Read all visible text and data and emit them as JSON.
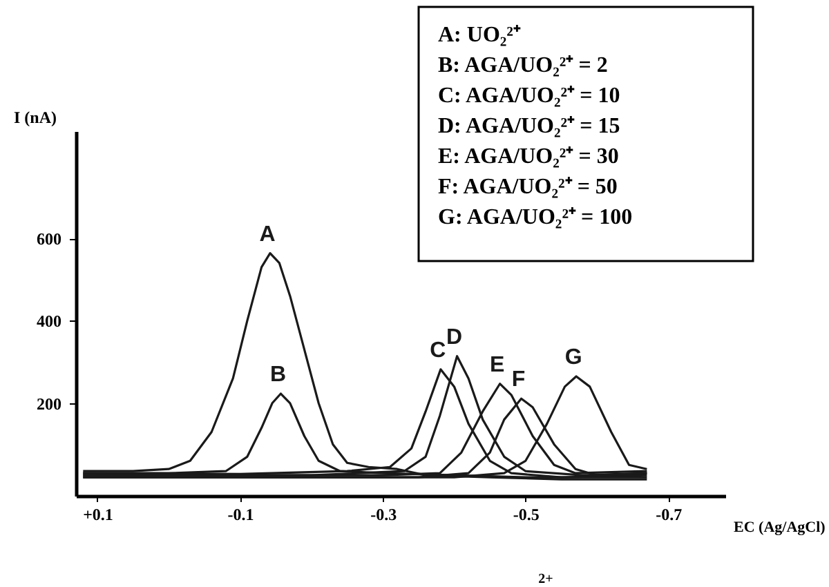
{
  "chart_data": {
    "type": "line",
    "xlabel": "EC (Ag/AgCl)",
    "ylabel": "I (nA)",
    "xlim": [
      0.13,
      -0.78
    ],
    "ylim": [
      -25,
      860
    ],
    "xticks": [
      {
        "value": 0.1,
        "label": "+0.1"
      },
      -0.1,
      -0.3,
      -0.5,
      -0.7
    ],
    "yticks": [
      200,
      400,
      600
    ],
    "grid": false,
    "legend": false,
    "marker": "none",
    "line_style": "solid",
    "series": [
      {
        "name": "A",
        "color": "#1a1a1a",
        "x": [
          0.12,
          0.05,
          0.0,
          -0.03,
          -0.06,
          -0.09,
          -0.11,
          -0.13,
          -0.142,
          -0.155,
          -0.17,
          -0.19,
          -0.21,
          -0.23,
          -0.25,
          -0.28,
          -0.32,
          -0.36,
          -0.45,
          -0.55,
          -0.67
        ],
        "values": [
          35,
          35,
          40,
          60,
          130,
          260,
          400,
          530,
          564,
          540,
          460,
          330,
          200,
          100,
          55,
          45,
          40,
          25,
          20,
          15,
          15
        ]
      },
      {
        "name": "B",
        "color": "#1a1a1a",
        "x": [
          0.12,
          0.0,
          -0.08,
          -0.11,
          -0.13,
          -0.145,
          -0.157,
          -0.17,
          -0.19,
          -0.21,
          -0.24,
          -0.3,
          -0.4,
          -0.5,
          -0.67
        ],
        "values": [
          30,
          30,
          35,
          70,
          140,
          200,
          223,
          200,
          120,
          60,
          35,
          30,
          25,
          20,
          20
        ]
      },
      {
        "name": "C",
        "color": "#1a1a1a",
        "x": [
          0.12,
          -0.1,
          -0.25,
          -0.31,
          -0.34,
          -0.36,
          -0.381,
          -0.4,
          -0.42,
          -0.45,
          -0.48,
          -0.55,
          -0.67
        ],
        "values": [
          30,
          28,
          35,
          45,
          90,
          180,
          282,
          240,
          150,
          60,
          30,
          20,
          25
        ]
      },
      {
        "name": "D",
        "color": "#1a1a1a",
        "x": [
          0.12,
          -0.2,
          -0.33,
          -0.36,
          -0.38,
          -0.404,
          -0.42,
          -0.44,
          -0.47,
          -0.5,
          -0.58,
          -0.67
        ],
        "values": [
          25,
          25,
          35,
          70,
          170,
          314,
          260,
          160,
          70,
          35,
          25,
          30
        ]
      },
      {
        "name": "E",
        "color": "#1a1a1a",
        "x": [
          0.12,
          -0.3,
          -0.38,
          -0.41,
          -0.44,
          -0.464,
          -0.48,
          -0.51,
          -0.54,
          -0.57,
          -0.67
        ],
        "values": [
          25,
          25,
          30,
          80,
          180,
          247,
          220,
          120,
          50,
          30,
          35
        ]
      },
      {
        "name": "F",
        "color": "#1a1a1a",
        "x": [
          0.12,
          -0.35,
          -0.42,
          -0.45,
          -0.47,
          -0.494,
          -0.51,
          -0.54,
          -0.57,
          -0.6,
          -0.67
        ],
        "values": [
          20,
          20,
          30,
          80,
          160,
          211,
          190,
          100,
          40,
          25,
          30
        ]
      },
      {
        "name": "G",
        "color": "#1a1a1a",
        "x": [
          0.12,
          -0.4,
          -0.47,
          -0.5,
          -0.53,
          -0.555,
          -0.571,
          -0.59,
          -0.62,
          -0.645,
          -0.67
        ],
        "values": [
          20,
          20,
          30,
          60,
          150,
          240,
          265,
          240,
          130,
          50,
          40
        ]
      }
    ],
    "annotations": [
      "A: UO₂²⁺",
      "B: AGA/UO₂²⁺ = 2",
      "C: AGA/UO₂²⁺ = 10",
      "D: AGA/UO₂²⁺ = 15",
      "E: AGA/UO₂²⁺ = 30",
      "F: AGA/UO₂²⁺ = 50",
      "G: AGA/UO₂²⁺ = 100",
      "2+"
    ]
  }
}
